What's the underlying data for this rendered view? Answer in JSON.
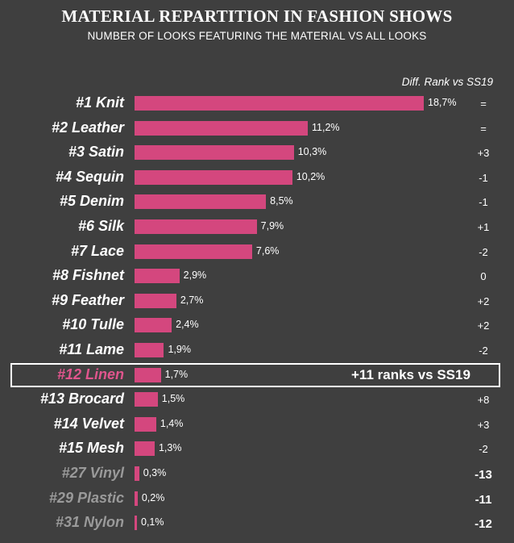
{
  "title": "MATERIAL REPARTITION IN FASHION SHOWS",
  "subtitle": "NUMBER OF LOOKS FEATURING THE MATERIAL VS ALL LOOKS",
  "diff_header": "Diff. Rank vs SS19",
  "highlight_note": "+11 ranks vs SS19",
  "colors": {
    "background": "#3f3f3f",
    "bar": "#d4477e",
    "highlight_label": "#e0558d",
    "muted_label": "#9a9a9a",
    "text": "#ffffff"
  },
  "chart_data": {
    "type": "bar",
    "orientation": "horizontal",
    "categories": [
      "#1 Knit",
      "#2 Leather",
      "#3 Satin",
      "#4 Sequin",
      "#5 Denim",
      "#6 Silk",
      "#7 Lace",
      "#8 Fishnet",
      "#9 Feather",
      "#10 Tulle",
      "#11 Lame",
      "#12 Linen",
      "#13 Brocard",
      "#14 Velvet",
      "#15 Mesh",
      "#27 Vinyl",
      "#29 Plastic",
      "#31 Nylon"
    ],
    "values": [
      18.7,
      11.2,
      10.3,
      10.2,
      8.5,
      7.9,
      7.6,
      2.9,
      2.7,
      2.4,
      1.9,
      1.7,
      1.5,
      1.4,
      1.3,
      0.3,
      0.2,
      0.1
    ],
    "value_labels": [
      "18,7%",
      "11,2%",
      "10,3%",
      "10,2%",
      "8,5%",
      "7,9%",
      "7,6%",
      "2,9%",
      "2,7%",
      "2,4%",
      "1,9%",
      "1,7%",
      "1,5%",
      "1,4%",
      "1,3%",
      "0,3%",
      "0,2%",
      "0,1%"
    ],
    "diff_rank": [
      "=",
      "=",
      "+3",
      "-1",
      "-1",
      "+1",
      "-2",
      "0",
      "+2",
      "+2",
      "-2",
      "",
      "+8",
      "+3",
      "-2",
      "-13",
      "-11",
      "-12"
    ],
    "highlighted": "#12 Linen",
    "muted": [
      "#27 Vinyl",
      "#29 Plastic",
      "#31 Nylon"
    ],
    "xlim": [
      0,
      18.7
    ]
  }
}
